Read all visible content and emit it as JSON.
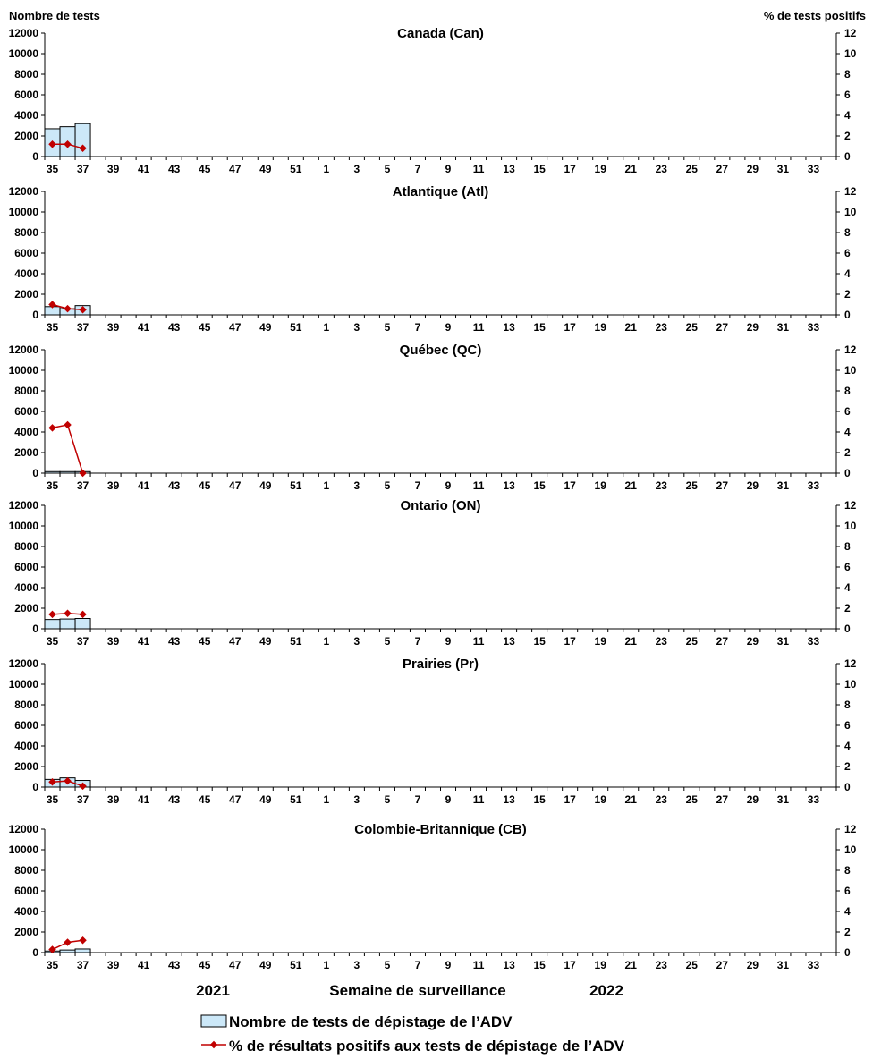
{
  "left_axis_title": "Nombre de tests",
  "right_axis_title": "% de tests positifs",
  "xlabel": "Semaine de surveillance",
  "year_labels": [
    "2021",
    "2022"
  ],
  "legend": {
    "bar_label": "Nombre de tests de dépistage de l’ADV",
    "line_label": "% de résultats positifs aux tests de dépistage de l’ADV"
  },
  "colors": {
    "bar_fill": "#cce8f8",
    "bar_stroke": "#000000",
    "line": "#c00000"
  },
  "chart_data": [
    {
      "type": "bar",
      "title": "Canada (Can)",
      "weeks": [
        "35",
        "36",
        "37"
      ],
      "series": [
        {
          "name": "Nombre de tests de dépistage de l’ADV",
          "axis": "left",
          "values": [
            2700,
            2900,
            3200
          ]
        },
        {
          "name": "% de résultats positifs aux tests de dépistage de l’ADV",
          "axis": "right",
          "values": [
            1.2,
            1.2,
            0.8
          ]
        }
      ],
      "x_tick_labels": [
        "35",
        "37",
        "39",
        "41",
        "43",
        "45",
        "47",
        "49",
        "51",
        "1",
        "3",
        "5",
        "7",
        "9",
        "11",
        "13",
        "15",
        "17",
        "19",
        "21",
        "23",
        "25",
        "27",
        "29",
        "31",
        "33"
      ],
      "ylim_left": [
        0,
        12000
      ],
      "yticks_left": [
        0,
        2000,
        4000,
        6000,
        8000,
        10000,
        12000
      ],
      "ylim_right": [
        0,
        12
      ],
      "yticks_right": [
        0,
        2,
        4,
        6,
        8,
        10,
        12
      ]
    },
    {
      "type": "bar",
      "title": "Atlantique (Atl)",
      "weeks": [
        "35",
        "36",
        "37"
      ],
      "series": [
        {
          "name": "Nombre de tests de dépistage de l’ADV",
          "axis": "left",
          "values": [
            800,
            600,
            900
          ]
        },
        {
          "name": "% de résultats positifs aux tests de dépistage de l’ADV",
          "axis": "right",
          "values": [
            1.0,
            0.6,
            0.5
          ]
        }
      ],
      "x_tick_labels": [
        "35",
        "37",
        "39",
        "41",
        "43",
        "45",
        "47",
        "49",
        "51",
        "1",
        "3",
        "5",
        "7",
        "9",
        "11",
        "13",
        "15",
        "17",
        "19",
        "21",
        "23",
        "25",
        "27",
        "29",
        "31",
        "33"
      ],
      "ylim_left": [
        0,
        12000
      ],
      "yticks_left": [
        0,
        2000,
        4000,
        6000,
        8000,
        10000,
        12000
      ],
      "ylim_right": [
        0,
        12
      ],
      "yticks_right": [
        0,
        2,
        4,
        6,
        8,
        10,
        12
      ]
    },
    {
      "type": "bar",
      "title": "Québec (QC)",
      "weeks": [
        "35",
        "36",
        "37"
      ],
      "series": [
        {
          "name": "Nombre de tests de dépistage de l’ADV",
          "axis": "left",
          "values": [
            150,
            150,
            150
          ]
        },
        {
          "name": "% de résultats positifs aux tests de dépistage de l’ADV",
          "axis": "right",
          "values": [
            4.4,
            4.7,
            0.0
          ]
        }
      ],
      "x_tick_labels": [
        "35",
        "37",
        "39",
        "41",
        "43",
        "45",
        "47",
        "49",
        "51",
        "1",
        "3",
        "5",
        "7",
        "9",
        "11",
        "13",
        "15",
        "17",
        "19",
        "21",
        "23",
        "25",
        "27",
        "29",
        "31",
        "33"
      ],
      "ylim_left": [
        0,
        12000
      ],
      "yticks_left": [
        0,
        2000,
        4000,
        6000,
        8000,
        10000,
        12000
      ],
      "ylim_right": [
        0,
        12
      ],
      "yticks_right": [
        0,
        2,
        4,
        6,
        8,
        10,
        12
      ]
    },
    {
      "type": "bar",
      "title": "Ontario (ON)",
      "weeks": [
        "35",
        "36",
        "37"
      ],
      "series": [
        {
          "name": "Nombre de tests de dépistage de l’ADV",
          "axis": "left",
          "values": [
            900,
            950,
            1000
          ]
        },
        {
          "name": "% de résultats positifs aux tests de dépistage de l’ADV",
          "axis": "right",
          "values": [
            1.4,
            1.5,
            1.4
          ]
        }
      ],
      "x_tick_labels": [
        "35",
        "37",
        "39",
        "41",
        "43",
        "45",
        "47",
        "49",
        "51",
        "1",
        "3",
        "5",
        "7",
        "9",
        "11",
        "13",
        "15",
        "17",
        "19",
        "21",
        "23",
        "25",
        "27",
        "29",
        "31",
        "33"
      ],
      "ylim_left": [
        0,
        12000
      ],
      "yticks_left": [
        0,
        2000,
        4000,
        6000,
        8000,
        10000,
        12000
      ],
      "ylim_right": [
        0,
        12
      ],
      "yticks_right": [
        0,
        2,
        4,
        6,
        8,
        10,
        12
      ]
    },
    {
      "type": "bar",
      "title": "Prairies (Pr)",
      "weeks": [
        "35",
        "36",
        "37"
      ],
      "series": [
        {
          "name": "Nombre de tests de dépistage de l’ADV",
          "axis": "left",
          "values": [
            750,
            900,
            650
          ]
        },
        {
          "name": "% de résultats positifs aux tests de dépistage de l’ADV",
          "axis": "right",
          "values": [
            0.5,
            0.6,
            0.1
          ]
        }
      ],
      "x_tick_labels": [
        "35",
        "37",
        "39",
        "41",
        "43",
        "45",
        "47",
        "49",
        "51",
        "1",
        "3",
        "5",
        "7",
        "9",
        "11",
        "13",
        "15",
        "17",
        "19",
        "21",
        "23",
        "25",
        "27",
        "29",
        "31",
        "33"
      ],
      "ylim_left": [
        0,
        12000
      ],
      "yticks_left": [
        0,
        2000,
        4000,
        6000,
        8000,
        10000,
        12000
      ],
      "ylim_right": [
        0,
        12
      ],
      "yticks_right": [
        0,
        2,
        4,
        6,
        8,
        10,
        12
      ]
    },
    {
      "type": "bar",
      "title": "Colombie-Britannique (CB)",
      "weeks": [
        "35",
        "36",
        "37"
      ],
      "series": [
        {
          "name": "Nombre de tests de dépistage de l’ADV",
          "axis": "left",
          "values": [
            150,
            250,
            350
          ]
        },
        {
          "name": "% de résultats positifs aux tests de dépistage de l’ADV",
          "axis": "right",
          "values": [
            0.3,
            1.0,
            1.2
          ]
        }
      ],
      "x_tick_labels": [
        "35",
        "37",
        "39",
        "41",
        "43",
        "45",
        "47",
        "49",
        "51",
        "1",
        "3",
        "5",
        "7",
        "9",
        "11",
        "13",
        "15",
        "17",
        "19",
        "21",
        "23",
        "25",
        "27",
        "29",
        "31",
        "33"
      ],
      "ylim_left": [
        0,
        12000
      ],
      "yticks_left": [
        0,
        2000,
        4000,
        6000,
        8000,
        10000,
        12000
      ],
      "ylim_right": [
        0,
        12
      ],
      "yticks_right": [
        0,
        2,
        4,
        6,
        8,
        10,
        12
      ]
    }
  ]
}
